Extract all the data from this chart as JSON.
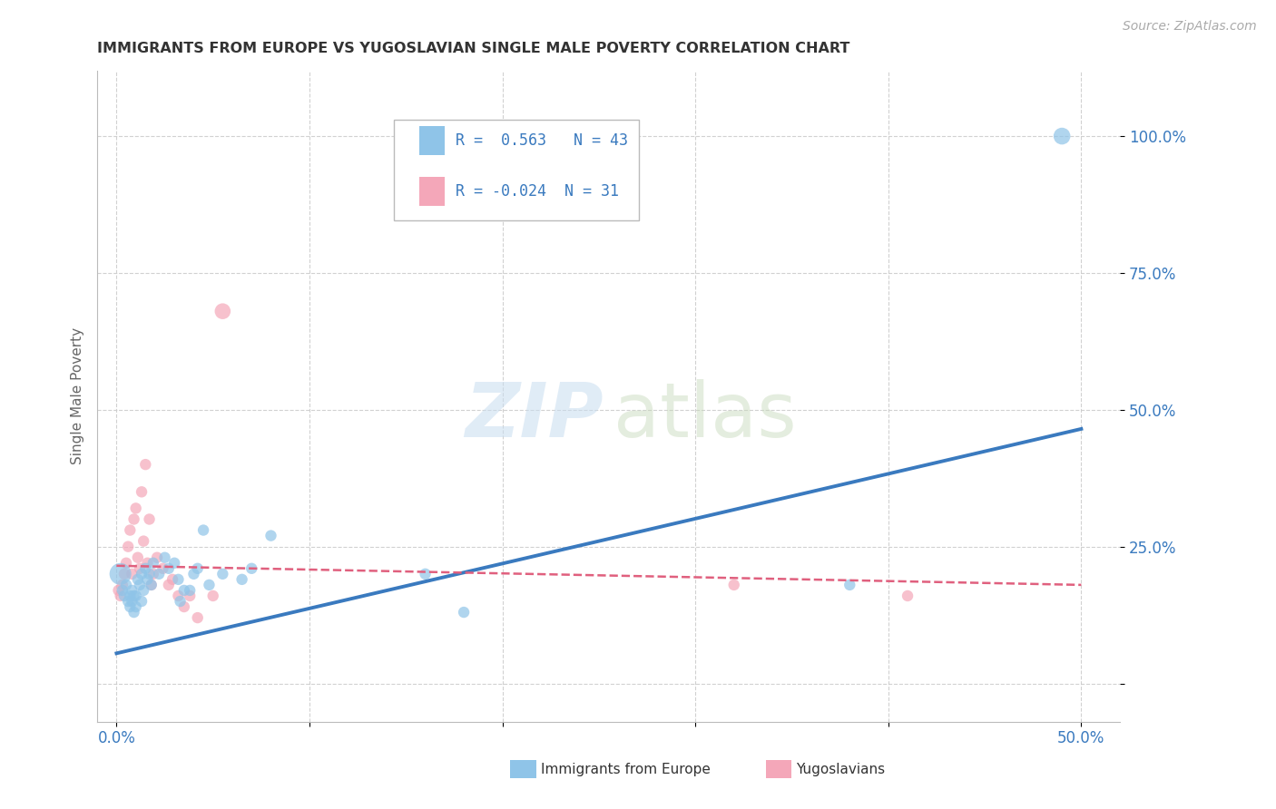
{
  "title": "IMMIGRANTS FROM EUROPE VS YUGOSLAVIAN SINGLE MALE POVERTY CORRELATION CHART",
  "source": "Source: ZipAtlas.com",
  "ylabel": "Single Male Poverty",
  "yticks": [
    0.0,
    0.25,
    0.5,
    0.75,
    1.0
  ],
  "ytick_labels": [
    "",
    "25.0%",
    "50.0%",
    "75.0%",
    "100.0%"
  ],
  "xticks": [
    0.0,
    0.1,
    0.2,
    0.3,
    0.4,
    0.5
  ],
  "xlim": [
    -0.01,
    0.52
  ],
  "ylim": [
    -0.07,
    1.12
  ],
  "blue_color": "#8fc4e8",
  "blue_line_color": "#3a7abf",
  "pink_color": "#f4a7b9",
  "pink_line_color": "#e0607e",
  "legend_text_color": "#3a7abf",
  "grid_color": "#cccccc",
  "title_color": "#333333",
  "R_blue": 0.563,
  "N_blue": 43,
  "R_pink": -0.024,
  "N_pink": 31,
  "blue_line_x": [
    0.0,
    0.5
  ],
  "blue_line_y": [
    0.055,
    0.465
  ],
  "pink_line_x": [
    0.0,
    0.5
  ],
  "pink_line_y": [
    0.215,
    0.18
  ],
  "blue_scatter_x": [
    0.002,
    0.003,
    0.004,
    0.005,
    0.006,
    0.007,
    0.007,
    0.008,
    0.008,
    0.009,
    0.009,
    0.01,
    0.01,
    0.011,
    0.012,
    0.013,
    0.013,
    0.014,
    0.015,
    0.016,
    0.017,
    0.018,
    0.019,
    0.022,
    0.025,
    0.027,
    0.03,
    0.032,
    0.033,
    0.035,
    0.038,
    0.04,
    0.042,
    0.045,
    0.048,
    0.055,
    0.065,
    0.07,
    0.08,
    0.16,
    0.18,
    0.38,
    0.49
  ],
  "blue_scatter_y": [
    0.2,
    0.17,
    0.16,
    0.18,
    0.15,
    0.14,
    0.16,
    0.15,
    0.17,
    0.13,
    0.16,
    0.14,
    0.16,
    0.19,
    0.18,
    0.15,
    0.2,
    0.17,
    0.21,
    0.19,
    0.2,
    0.18,
    0.22,
    0.2,
    0.23,
    0.21,
    0.22,
    0.19,
    0.15,
    0.17,
    0.17,
    0.2,
    0.21,
    0.28,
    0.18,
    0.2,
    0.19,
    0.21,
    0.27,
    0.2,
    0.13,
    0.18,
    1.0
  ],
  "blue_scatter_sizes": [
    300,
    80,
    80,
    80,
    80,
    80,
    80,
    80,
    80,
    80,
    80,
    80,
    80,
    80,
    80,
    80,
    80,
    80,
    80,
    80,
    80,
    80,
    80,
    80,
    80,
    80,
    80,
    80,
    80,
    80,
    80,
    80,
    80,
    80,
    80,
    80,
    80,
    80,
    80,
    80,
    80,
    80,
    180
  ],
  "pink_scatter_x": [
    0.001,
    0.002,
    0.003,
    0.004,
    0.005,
    0.006,
    0.007,
    0.008,
    0.009,
    0.01,
    0.011,
    0.012,
    0.013,
    0.014,
    0.015,
    0.016,
    0.017,
    0.018,
    0.019,
    0.021,
    0.024,
    0.027,
    0.029,
    0.032,
    0.035,
    0.038,
    0.042,
    0.05,
    0.055,
    0.32,
    0.41
  ],
  "pink_scatter_y": [
    0.17,
    0.16,
    0.18,
    0.2,
    0.22,
    0.25,
    0.28,
    0.2,
    0.3,
    0.32,
    0.23,
    0.21,
    0.35,
    0.26,
    0.4,
    0.22,
    0.3,
    0.18,
    0.2,
    0.23,
    0.21,
    0.18,
    0.19,
    0.16,
    0.14,
    0.16,
    0.12,
    0.16,
    0.68,
    0.18,
    0.16
  ],
  "pink_scatter_sizes": [
    80,
    80,
    80,
    80,
    80,
    80,
    80,
    80,
    80,
    80,
    80,
    80,
    80,
    80,
    80,
    80,
    80,
    80,
    80,
    80,
    80,
    80,
    80,
    80,
    80,
    80,
    80,
    80,
    160,
    80,
    80
  ]
}
